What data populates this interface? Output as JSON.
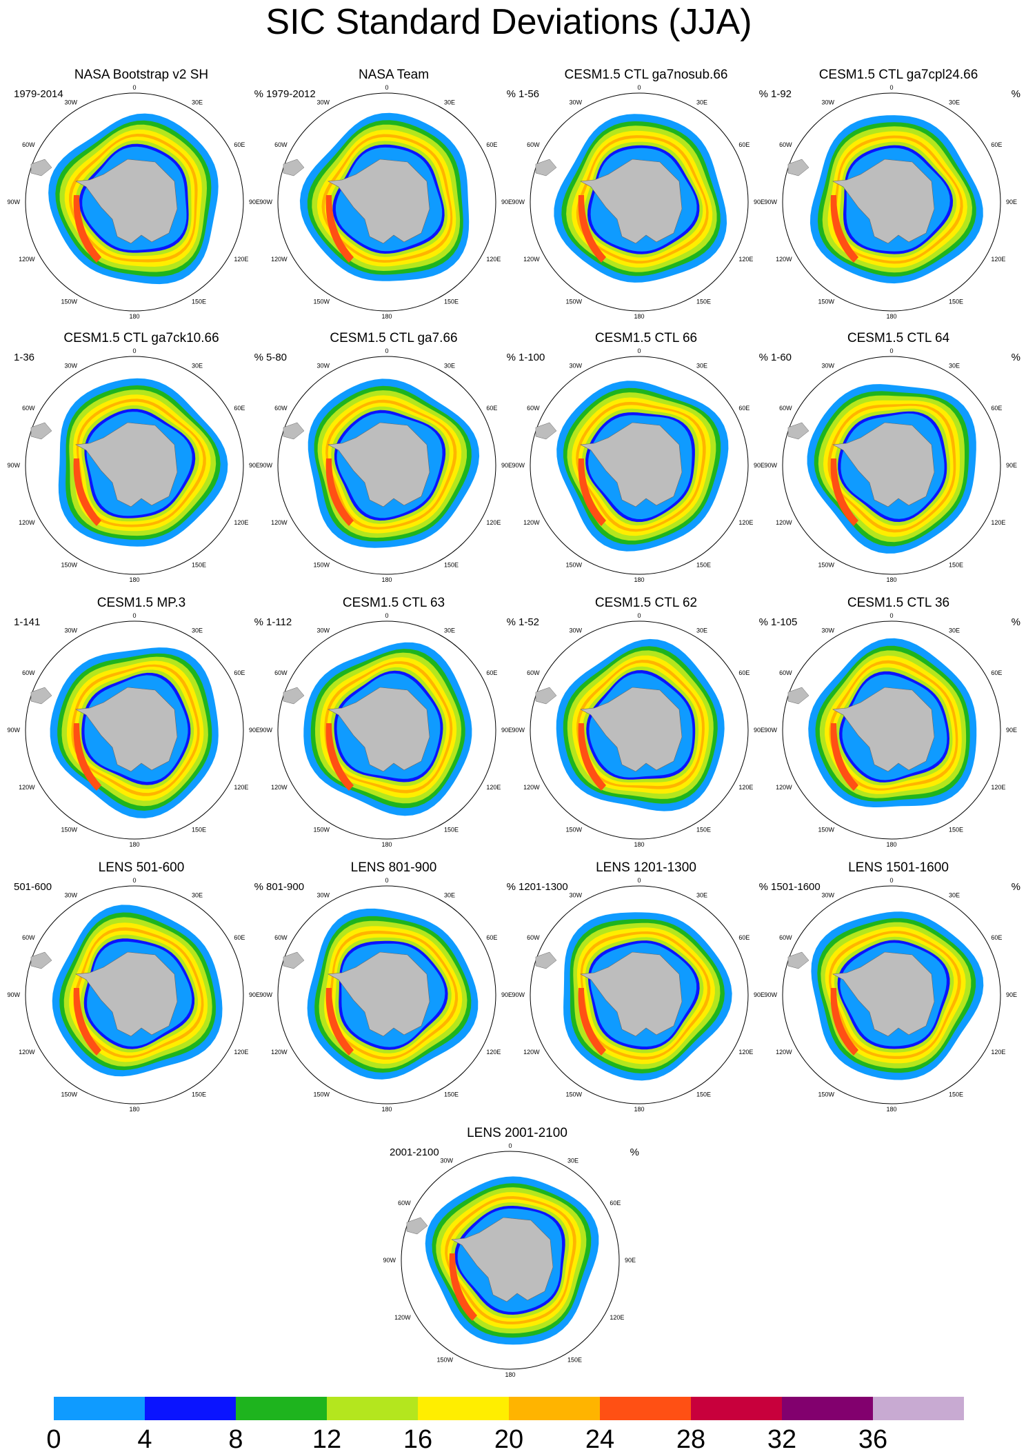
{
  "title": "SIC Standard Deviations (JJA)",
  "unit": "%",
  "longitude_labels": {
    "l0": "0",
    "l30e": "30E",
    "l60e": "60E",
    "l90e": "90E",
    "l120e": "120E",
    "l150e": "150E",
    "l180": "180",
    "l150w": "150W",
    "l120w": "120W",
    "l90w": "90W",
    "l60w": "60W",
    "l30w": "30W"
  },
  "panels": [
    {
      "title": "NASA Bootstrap v2 SH",
      "range": "1979-2014"
    },
    {
      "title": "NASA Team",
      "range": "1979-2012"
    },
    {
      "title": "CESM1.5 CTL ga7nosub.66",
      "range": "1-56"
    },
    {
      "title": "CESM1.5 CTL ga7cpl24.66",
      "range": "1-92"
    },
    {
      "title": "CESM1.5 CTL ga7ck10.66",
      "range": "1-36"
    },
    {
      "title": "CESM1.5 CTL ga7.66",
      "range": "5-80"
    },
    {
      "title": "CESM1.5 CTL 66",
      "range": "1-100"
    },
    {
      "title": "CESM1.5 CTL 64",
      "range": "1-60"
    },
    {
      "title": "CESM1.5 MP.3",
      "range": "1-141"
    },
    {
      "title": "CESM1.5 CTL 63",
      "range": "1-112"
    },
    {
      "title": "CESM1.5 CTL 62",
      "range": "1-52"
    },
    {
      "title": "CESM1.5 CTL 36",
      "range": "1-105"
    },
    {
      "title": "LENS 501-600",
      "range": "501-600"
    },
    {
      "title": "LENS 801-900",
      "range": "801-900"
    },
    {
      "title": "LENS 1201-1300",
      "range": "1201-1300"
    },
    {
      "title": "LENS 1501-1600",
      "range": "1501-1600"
    },
    {
      "title": "LENS 2001-2100",
      "range": "2001-2100"
    }
  ],
  "colorbar": {
    "ticks": [
      "0",
      "4",
      "8",
      "12",
      "16",
      "20",
      "24",
      "28",
      "32",
      "36"
    ],
    "colors": [
      "#0f9bff",
      "#0a14ff",
      "#1eb41e",
      "#b4e61e",
      "#ffee00",
      "#ffb400",
      "#ff5014",
      "#c8003c",
      "#82006e",
      "#c8aad2"
    ]
  }
}
